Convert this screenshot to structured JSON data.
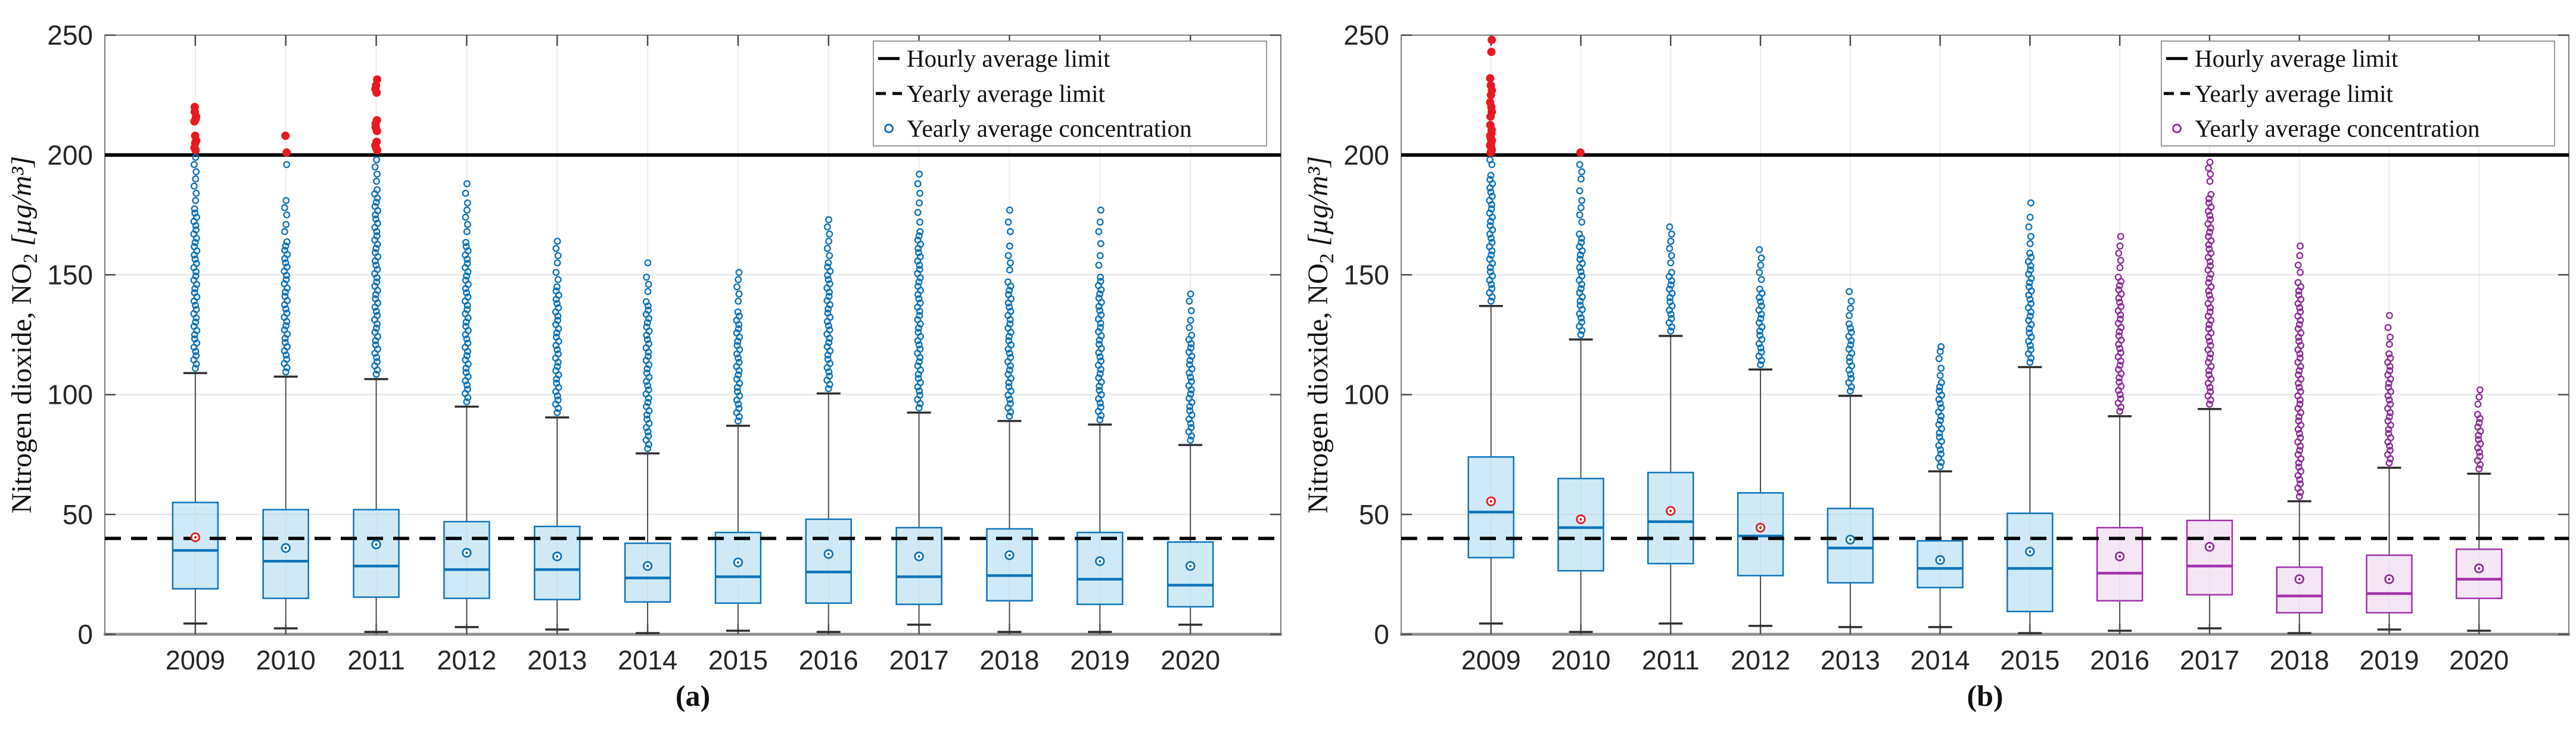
{
  "figure": {
    "title": "",
    "ylabel_main": "Nitrogen dioxide, NO",
    "ylabel_sub": "2",
    "ylabel_unit": " [µg/m³]",
    "ylabel_full": "Nitrogen dioxide, NO₂ [µg/m³]",
    "legend_items": [
      {
        "glyph": "solid-line",
        "label": "Hourly average limit"
      },
      {
        "glyph": "dashed-line",
        "label": "Yearly average limit"
      },
      {
        "glyph": "circle-marker",
        "label": "Yearly average concentration"
      }
    ],
    "panel_a_label": "(a)",
    "panel_b_label": "(b)"
  },
  "colors": {
    "blue_edge": "#0f74ba",
    "blue_fill": "#a8d8ee",
    "blue_marker": "#0b72b8",
    "purple_edge": "#a231aa",
    "purple_fill": "#ecd1ec",
    "purple_marker": "#8e2b98",
    "red": "#e8191f",
    "black": "#000000",
    "whisker": "#4f4f4f",
    "cap": "#2f2f2f",
    "grid_h": "#e3e3e3",
    "grid_v": "#ededed",
    "border": "#7d7d7d",
    "axis_bottom": "#919191",
    "tick": "#4c4c4c",
    "text": "#262626"
  },
  "chart_data": [
    {
      "type": "box",
      "panel_label": "(a)",
      "x_categories": [
        "2009",
        "2010",
        "2011",
        "2012",
        "2013",
        "2014",
        "2015",
        "2016",
        "2017",
        "2018",
        "2019",
        "2020"
      ],
      "ylabel": "Nitrogen dioxide, NO₂ [µg/m³]",
      "ylim": [
        0,
        250
      ],
      "yticks": [
        0,
        50,
        100,
        150,
        200,
        250
      ],
      "grid": true,
      "legend_position": "top-right",
      "legend": [
        "Hourly average limit",
        "Yearly average limit",
        "Yearly average concentration"
      ],
      "hourly_limit": 200,
      "yearly_limit": 40,
      "marker_color_key": "blue",
      "series": [
        {
          "year": "2009",
          "group": "blue",
          "whisker_low": 4.5,
          "q1": 19,
          "median": 35,
          "q3": 55,
          "whisker_high": 109,
          "mean": 40.5,
          "mean_color": "red",
          "outliers_dense_top": 178,
          "outliers_sparse": [
            181,
            184,
            187,
            190,
            193,
            196,
            199
          ],
          "outliers_red": [
            202,
            203,
            205,
            206,
            208,
            214,
            215,
            216,
            218,
            220
          ],
          "outlier_max": 220
        },
        {
          "year": "2010",
          "group": "blue",
          "whisker_low": 2.5,
          "q1": 15,
          "median": 30.5,
          "q3": 52,
          "whisker_high": 107.5,
          "mean": 36,
          "mean_color": "blue",
          "outliers_dense_top": 165,
          "outliers_sparse": [
            168,
            171,
            175,
            178,
            181,
            196
          ],
          "outliers_red": [
            201,
            208
          ],
          "outlier_max": 208
        },
        {
          "year": "2011",
          "group": "blue",
          "whisker_low": 1,
          "q1": 15.5,
          "median": 28.5,
          "q3": 52,
          "whisker_high": 106.5,
          "mean": 37.5,
          "mean_color": "blue",
          "outliers_dense_top": 186,
          "outliers_sparse": [
            189,
            192,
            195,
            198
          ],
          "outliers_red": [
            202,
            203,
            204,
            205.5,
            210,
            211.5,
            213,
            214.5,
            226,
            227.5,
            229,
            231.5
          ],
          "outlier_max": 231.5
        },
        {
          "year": "2012",
          "group": "blue",
          "whisker_low": 3,
          "q1": 15,
          "median": 27,
          "q3": 47,
          "whisker_high": 95,
          "mean": 34,
          "mean_color": "blue",
          "outliers_dense_top": 165,
          "outliers_sparse": [
            168,
            171,
            174,
            177,
            180,
            184,
            188
          ],
          "outliers_red": [],
          "outlier_max": 188
        },
        {
          "year": "2013",
          "group": "blue",
          "whisker_low": 2,
          "q1": 14.5,
          "median": 27,
          "q3": 45,
          "whisker_high": 90.5,
          "mean": 32.5,
          "mean_color": "blue",
          "outliers_dense_top": 145,
          "outliers_sparse": [
            148,
            151,
            155,
            158,
            161,
            164
          ],
          "outliers_red": [],
          "outlier_max": 164
        },
        {
          "year": "2014",
          "group": "blue",
          "whisker_low": 0.5,
          "q1": 13.5,
          "median": 23.5,
          "q3": 38,
          "whisker_high": 75.5,
          "mean": 28.5,
          "mean_color": "blue",
          "outliers_dense_top": 140,
          "outliers_sparse": [
            143,
            146,
            149,
            155
          ],
          "outliers_red": [],
          "outlier_max": 155
        },
        {
          "year": "2015",
          "group": "blue",
          "whisker_low": 1.5,
          "q1": 13,
          "median": 24,
          "q3": 42.5,
          "whisker_high": 87,
          "mean": 30,
          "mean_color": "blue",
          "outliers_dense_top": 136,
          "outliers_sparse": [
            139,
            142,
            145,
            148,
            151
          ],
          "outliers_red": [],
          "outlier_max": 151
        },
        {
          "year": "2016",
          "group": "blue",
          "whisker_low": 1,
          "q1": 13,
          "median": 26,
          "q3": 48,
          "whisker_high": 100.5,
          "mean": 33.5,
          "mean_color": "blue",
          "outliers_dense_top": 155,
          "outliers_sparse": [
            158,
            161,
            164,
            167,
            170,
            173
          ],
          "outliers_red": [],
          "outlier_max": 173
        },
        {
          "year": "2017",
          "group": "blue",
          "whisker_low": 4,
          "q1": 12.5,
          "median": 24,
          "q3": 44.5,
          "whisker_high": 92.5,
          "mean": 32.5,
          "mean_color": "blue",
          "outliers_dense_top": 168,
          "outliers_sparse": [
            172,
            176,
            180,
            184,
            188,
            192
          ],
          "outliers_red": [],
          "outlier_max": 192
        },
        {
          "year": "2018",
          "group": "blue",
          "whisker_low": 1,
          "q1": 14,
          "median": 24.5,
          "q3": 44,
          "whisker_high": 89,
          "mean": 33,
          "mean_color": "blue",
          "outliers_dense_top": 148,
          "outliers_sparse": [
            152,
            155,
            158,
            162,
            168,
            172,
            177
          ],
          "outliers_red": [],
          "outlier_max": 177
        },
        {
          "year": "2019",
          "group": "blue",
          "whisker_low": 1,
          "q1": 12.5,
          "median": 23,
          "q3": 42.5,
          "whisker_high": 87.5,
          "mean": 30.5,
          "mean_color": "blue",
          "outliers_dense_top": 150,
          "outliers_sparse": [
            154,
            158,
            163,
            168,
            172,
            177
          ],
          "outliers_red": [],
          "outlier_max": 177
        },
        {
          "year": "2020",
          "group": "blue",
          "whisker_low": 4,
          "q1": 11.5,
          "median": 20.5,
          "q3": 38.5,
          "whisker_high": 79,
          "mean": 28.5,
          "mean_color": "blue",
          "outliers_dense_top": 125,
          "outliers_sparse": [
            128,
            131,
            135,
            139,
            142
          ],
          "outliers_red": [],
          "outlier_max": 142
        }
      ]
    },
    {
      "type": "box",
      "panel_label": "(b)",
      "x_categories": [
        "2009",
        "2010",
        "2011",
        "2012",
        "2013",
        "2014",
        "2015",
        "2016",
        "2017",
        "2018",
        "2019",
        "2020"
      ],
      "ylabel": "Nitrogen dioxide, NO₂ [µg/m³]",
      "ylim": [
        0,
        250
      ],
      "yticks": [
        0,
        50,
        100,
        150,
        200,
        250
      ],
      "grid": true,
      "legend_position": "top-right",
      "legend": [
        "Hourly average limit",
        "Yearly average limit",
        "Yearly average concentration"
      ],
      "hourly_limit": 200,
      "yearly_limit": 40,
      "marker_color_key": "purple",
      "series": [
        {
          "year": "2009",
          "group": "blue",
          "whisker_low": 4.5,
          "q1": 32,
          "median": 51,
          "q3": 74,
          "whisker_high": 137,
          "mean": 55.5,
          "mean_color": "red",
          "outliers_dense_top": 193,
          "outliers_sparse": [
            196,
            198
          ],
          "outliers_red": [
            201,
            202,
            203,
            204,
            205,
            206,
            207,
            208,
            209,
            210.5,
            212.5,
            216,
            218,
            220,
            222,
            225,
            227,
            229,
            232,
            243,
            248
          ],
          "outlier_max": 248
        },
        {
          "year": "2010",
          "group": "blue",
          "whisker_low": 1,
          "q1": 26.5,
          "median": 44.5,
          "q3": 65,
          "whisker_high": 123,
          "mean": 48,
          "mean_color": "red",
          "outliers_dense_top": 168,
          "outliers_sparse": [
            172,
            175,
            178,
            181,
            185,
            190,
            193,
            196
          ],
          "outliers_red": [
            201
          ],
          "outlier_max": 201
        },
        {
          "year": "2011",
          "group": "blue",
          "whisker_low": 4.5,
          "q1": 29.5,
          "median": 47,
          "q3": 67.5,
          "whisker_high": 124.5,
          "mean": 51.5,
          "mean_color": "red",
          "outliers_dense_top": 152,
          "outliers_sparse": [
            155,
            158,
            161,
            164,
            167,
            170
          ],
          "outliers_red": [],
          "outlier_max": 170
        },
        {
          "year": "2012",
          "group": "blue",
          "whisker_low": 3.5,
          "q1": 24.5,
          "median": 41,
          "q3": 59,
          "whisker_high": 110.5,
          "mean": 44.5,
          "mean_color": "red",
          "outliers_dense_top": 145,
          "outliers_sparse": [
            148,
            151,
            154,
            157,
            160.5
          ],
          "outliers_red": [],
          "outlier_max": 160.5
        },
        {
          "year": "2013",
          "group": "blue",
          "whisker_low": 3,
          "q1": 21.5,
          "median": 36,
          "q3": 52.5,
          "whisker_high": 99.5,
          "mean": 39.5,
          "mean_color": "blue",
          "outliers_dense_top": 130,
          "outliers_sparse": [
            133,
            136,
            139,
            143
          ],
          "outliers_red": [],
          "outlier_max": 143
        },
        {
          "year": "2014",
          "group": "blue",
          "whisker_low": 3,
          "q1": 19.5,
          "median": 27.5,
          "q3": 39,
          "whisker_high": 68,
          "mean": 31,
          "mean_color": "blue",
          "outliers_dense_top": 105,
          "outliers_sparse": [
            108,
            111,
            115,
            118,
            120
          ],
          "outliers_red": [],
          "outlier_max": 120
        },
        {
          "year": "2015",
          "group": "blue",
          "whisker_low": 0.5,
          "q1": 9.5,
          "median": 27.5,
          "q3": 50.5,
          "whisker_high": 111.5,
          "mean": 34.5,
          "mean_color": "blue",
          "outliers_dense_top": 160,
          "outliers_sparse": [
            163,
            166,
            170,
            174,
            180
          ],
          "outliers_red": [],
          "outlier_max": 180
        },
        {
          "year": "2016",
          "group": "purple",
          "whisker_low": 1.5,
          "q1": 14,
          "median": 25.5,
          "q3": 44.5,
          "whisker_high": 91,
          "mean": 32.5,
          "mean_color": "purple",
          "outliers_dense_top": 150,
          "outliers_sparse": [
            153,
            156,
            159,
            162,
            166
          ],
          "outliers_red": [],
          "outlier_max": 166
        },
        {
          "year": "2017",
          "group": "purple",
          "whisker_low": 2.5,
          "q1": 16.5,
          "median": 28.5,
          "q3": 47.5,
          "whisker_high": 94,
          "mean": 36.5,
          "mean_color": "purple",
          "outliers_dense_top": 185,
          "outliers_sparse": [
            189,
            192,
            194.5,
            197
          ],
          "outliers_red": [],
          "outlier_max": 197
        },
        {
          "year": "2018",
          "group": "purple",
          "whisker_low": 0.5,
          "q1": 9,
          "median": 16,
          "q3": 28,
          "whisker_high": 55.5,
          "mean": 23,
          "mean_color": "purple",
          "outliers_dense_top": 148,
          "outliers_sparse": [
            151,
            154,
            158,
            162
          ],
          "outliers_red": [],
          "outlier_max": 162
        },
        {
          "year": "2019",
          "group": "purple",
          "whisker_low": 2,
          "q1": 9,
          "median": 17,
          "q3": 33,
          "whisker_high": 69.5,
          "mean": 23,
          "mean_color": "purple",
          "outliers_dense_top": 118,
          "outliers_sparse": [
            121,
            124,
            128,
            133
          ],
          "outliers_red": [],
          "outlier_max": 133
        },
        {
          "year": "2020",
          "group": "purple",
          "whisker_low": 1.5,
          "q1": 15,
          "median": 23,
          "q3": 35.5,
          "whisker_high": 67,
          "mean": 27.5,
          "mean_color": "purple",
          "outliers_dense_top": 93,
          "outliers_sparse": [
            96,
            99,
            102
          ],
          "outliers_red": [],
          "outlier_max": 102
        }
      ]
    }
  ]
}
